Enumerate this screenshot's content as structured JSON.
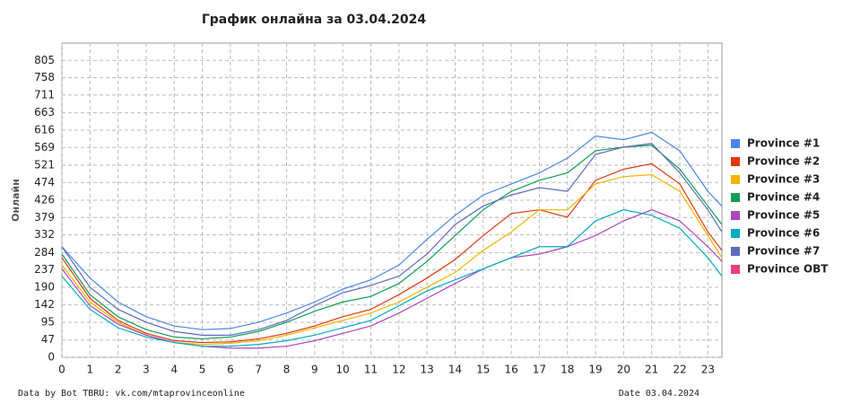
{
  "chart_data": {
    "type": "line",
    "title": "График онлайна за 03.04.2024",
    "y_label": "Онлайн",
    "footer_left": "Data by Bot TBRU: vk.com/mtaprovinceonline",
    "footer_right": "Date 03.04.2024",
    "x": [
      0,
      1,
      2,
      3,
      4,
      5,
      6,
      7,
      8,
      9,
      10,
      11,
      12,
      13,
      14,
      15,
      16,
      17,
      18,
      19,
      20,
      21,
      22,
      23,
      23.5
    ],
    "xlim": [
      0,
      23.5
    ],
    "xticks": [
      0,
      1,
      2,
      3,
      4,
      5,
      6,
      7,
      8,
      9,
      10,
      11,
      12,
      13,
      14,
      15,
      16,
      17,
      18,
      19,
      20,
      21,
      22,
      23
    ],
    "ylim": [
      0,
      852
    ],
    "yticks": [
      0,
      47,
      95,
      142,
      190,
      237,
      284,
      332,
      379,
      426,
      474,
      521,
      569,
      616,
      663,
      711,
      758,
      805
    ],
    "grid": true,
    "legend": "right",
    "series": [
      {
        "name": "Province #1",
        "color": "#4a86e8",
        "values": [
          300,
          215,
          150,
          110,
          85,
          75,
          78,
          95,
          120,
          150,
          185,
          210,
          250,
          320,
          385,
          440,
          470,
          500,
          540,
          600,
          590,
          610,
          560,
          450,
          410
        ]
      },
      {
        "name": "Province #2",
        "color": "#dc3912",
        "values": [
          270,
          160,
          100,
          65,
          45,
          40,
          42,
          50,
          65,
          85,
          110,
          130,
          170,
          215,
          265,
          330,
          390,
          400,
          380,
          480,
          510,
          525,
          470,
          340,
          290
        ]
      },
      {
        "name": "Province #3",
        "color": "#f4b400",
        "values": [
          250,
          150,
          95,
          60,
          40,
          35,
          38,
          45,
          60,
          80,
          100,
          120,
          150,
          190,
          230,
          290,
          340,
          400,
          400,
          470,
          490,
          495,
          450,
          330,
          270
        ]
      },
      {
        "name": "Province #4",
        "color": "#0f9d58",
        "values": [
          280,
          170,
          110,
          75,
          55,
          50,
          55,
          70,
          95,
          125,
          150,
          165,
          200,
          260,
          330,
          400,
          450,
          480,
          500,
          560,
          570,
          575,
          510,
          410,
          360
        ]
      },
      {
        "name": "Province #5",
        "color": "#ab47bc",
        "values": [
          240,
          140,
          90,
          60,
          40,
          30,
          25,
          25,
          30,
          45,
          65,
          85,
          120,
          160,
          200,
          240,
          270,
          280,
          300,
          330,
          370,
          400,
          370,
          300,
          260
        ]
      },
      {
        "name": "Province #6",
        "color": "#00acc1",
        "values": [
          220,
          130,
          80,
          55,
          40,
          30,
          30,
          35,
          45,
          60,
          80,
          100,
          140,
          180,
          210,
          240,
          270,
          300,
          300,
          370,
          400,
          385,
          350,
          270,
          220
        ]
      },
      {
        "name": "Province #7",
        "color": "#5c6bc0",
        "values": [
          300,
          190,
          130,
          95,
          70,
          60,
          60,
          75,
          100,
          140,
          175,
          195,
          220,
          280,
          360,
          410,
          440,
          460,
          450,
          550,
          570,
          580,
          500,
          400,
          340
        ]
      },
      {
        "name": "Province OBT",
        "color": "#ec407a",
        "values": [
          null,
          null,
          null,
          null,
          null,
          null,
          null,
          null,
          null,
          null,
          null,
          null,
          null,
          null,
          null,
          null,
          null,
          null,
          null,
          null,
          null,
          null,
          null,
          null,
          null
        ]
      }
    ]
  }
}
